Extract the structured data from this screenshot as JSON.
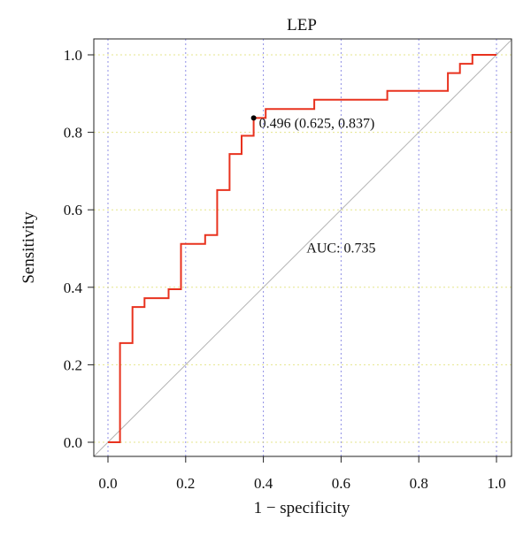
{
  "chart_data": {
    "type": "line",
    "title": "LEP",
    "xlabel": "1 − specificity",
    "ylabel": "Sensitivity",
    "xlim": [
      0.0,
      1.0
    ],
    "ylim": [
      0.0,
      1.0
    ],
    "x_ticks": [
      0.0,
      0.2,
      0.4,
      0.6,
      0.8,
      1.0
    ],
    "y_ticks": [
      0.0,
      0.2,
      0.4,
      0.6,
      0.8,
      1.0
    ],
    "x_tick_labels": [
      "0.0",
      "0.2",
      "0.4",
      "0.6",
      "0.8",
      "1.0"
    ],
    "y_tick_labels": [
      "0.0",
      "0.2",
      "0.4",
      "0.6",
      "0.8",
      "1.0"
    ],
    "grid": true,
    "colors": {
      "roc": "#e8321e",
      "auc_text": "#e8321e",
      "diagonal": "#b4b4b4",
      "grid_vertical": "#8f8fe6",
      "grid_horizontal": "#e6e68c",
      "threshold_point": "#000000"
    },
    "series": [
      {
        "x": [
          0.0,
          0.031,
          0.031,
          0.063,
          0.063,
          0.094,
          0.094,
          0.156,
          0.156,
          0.188,
          0.188,
          0.25,
          0.25,
          0.281,
          0.281,
          0.313,
          0.313,
          0.344,
          0.344,
          0.375,
          0.375,
          0.406,
          0.406,
          0.531,
          0.531,
          0.719,
          0.719,
          0.875,
          0.875,
          0.906,
          0.906,
          0.938,
          0.938,
          1.0
        ],
        "y": [
          0.0,
          0.0,
          0.256,
          0.256,
          0.349,
          0.349,
          0.372,
          0.372,
          0.395,
          0.395,
          0.512,
          0.512,
          0.535,
          0.535,
          0.651,
          0.651,
          0.744,
          0.744,
          0.791,
          0.791,
          0.837,
          0.837,
          0.86,
          0.86,
          0.884,
          0.884,
          0.907,
          0.907,
          0.953,
          0.953,
          0.977,
          0.977,
          1.0,
          1.0
        ]
      }
    ],
    "reference_line": {
      "x": [
        0.0,
        1.0
      ],
      "y": [
        0.0,
        1.0
      ]
    },
    "threshold": {
      "x": 0.375,
      "y": 0.837,
      "label": "0.496 (0.625, 0.837)"
    },
    "annotations": [
      {
        "text": "AUC: 0.735",
        "x": 0.6,
        "y": 0.49
      }
    ]
  }
}
